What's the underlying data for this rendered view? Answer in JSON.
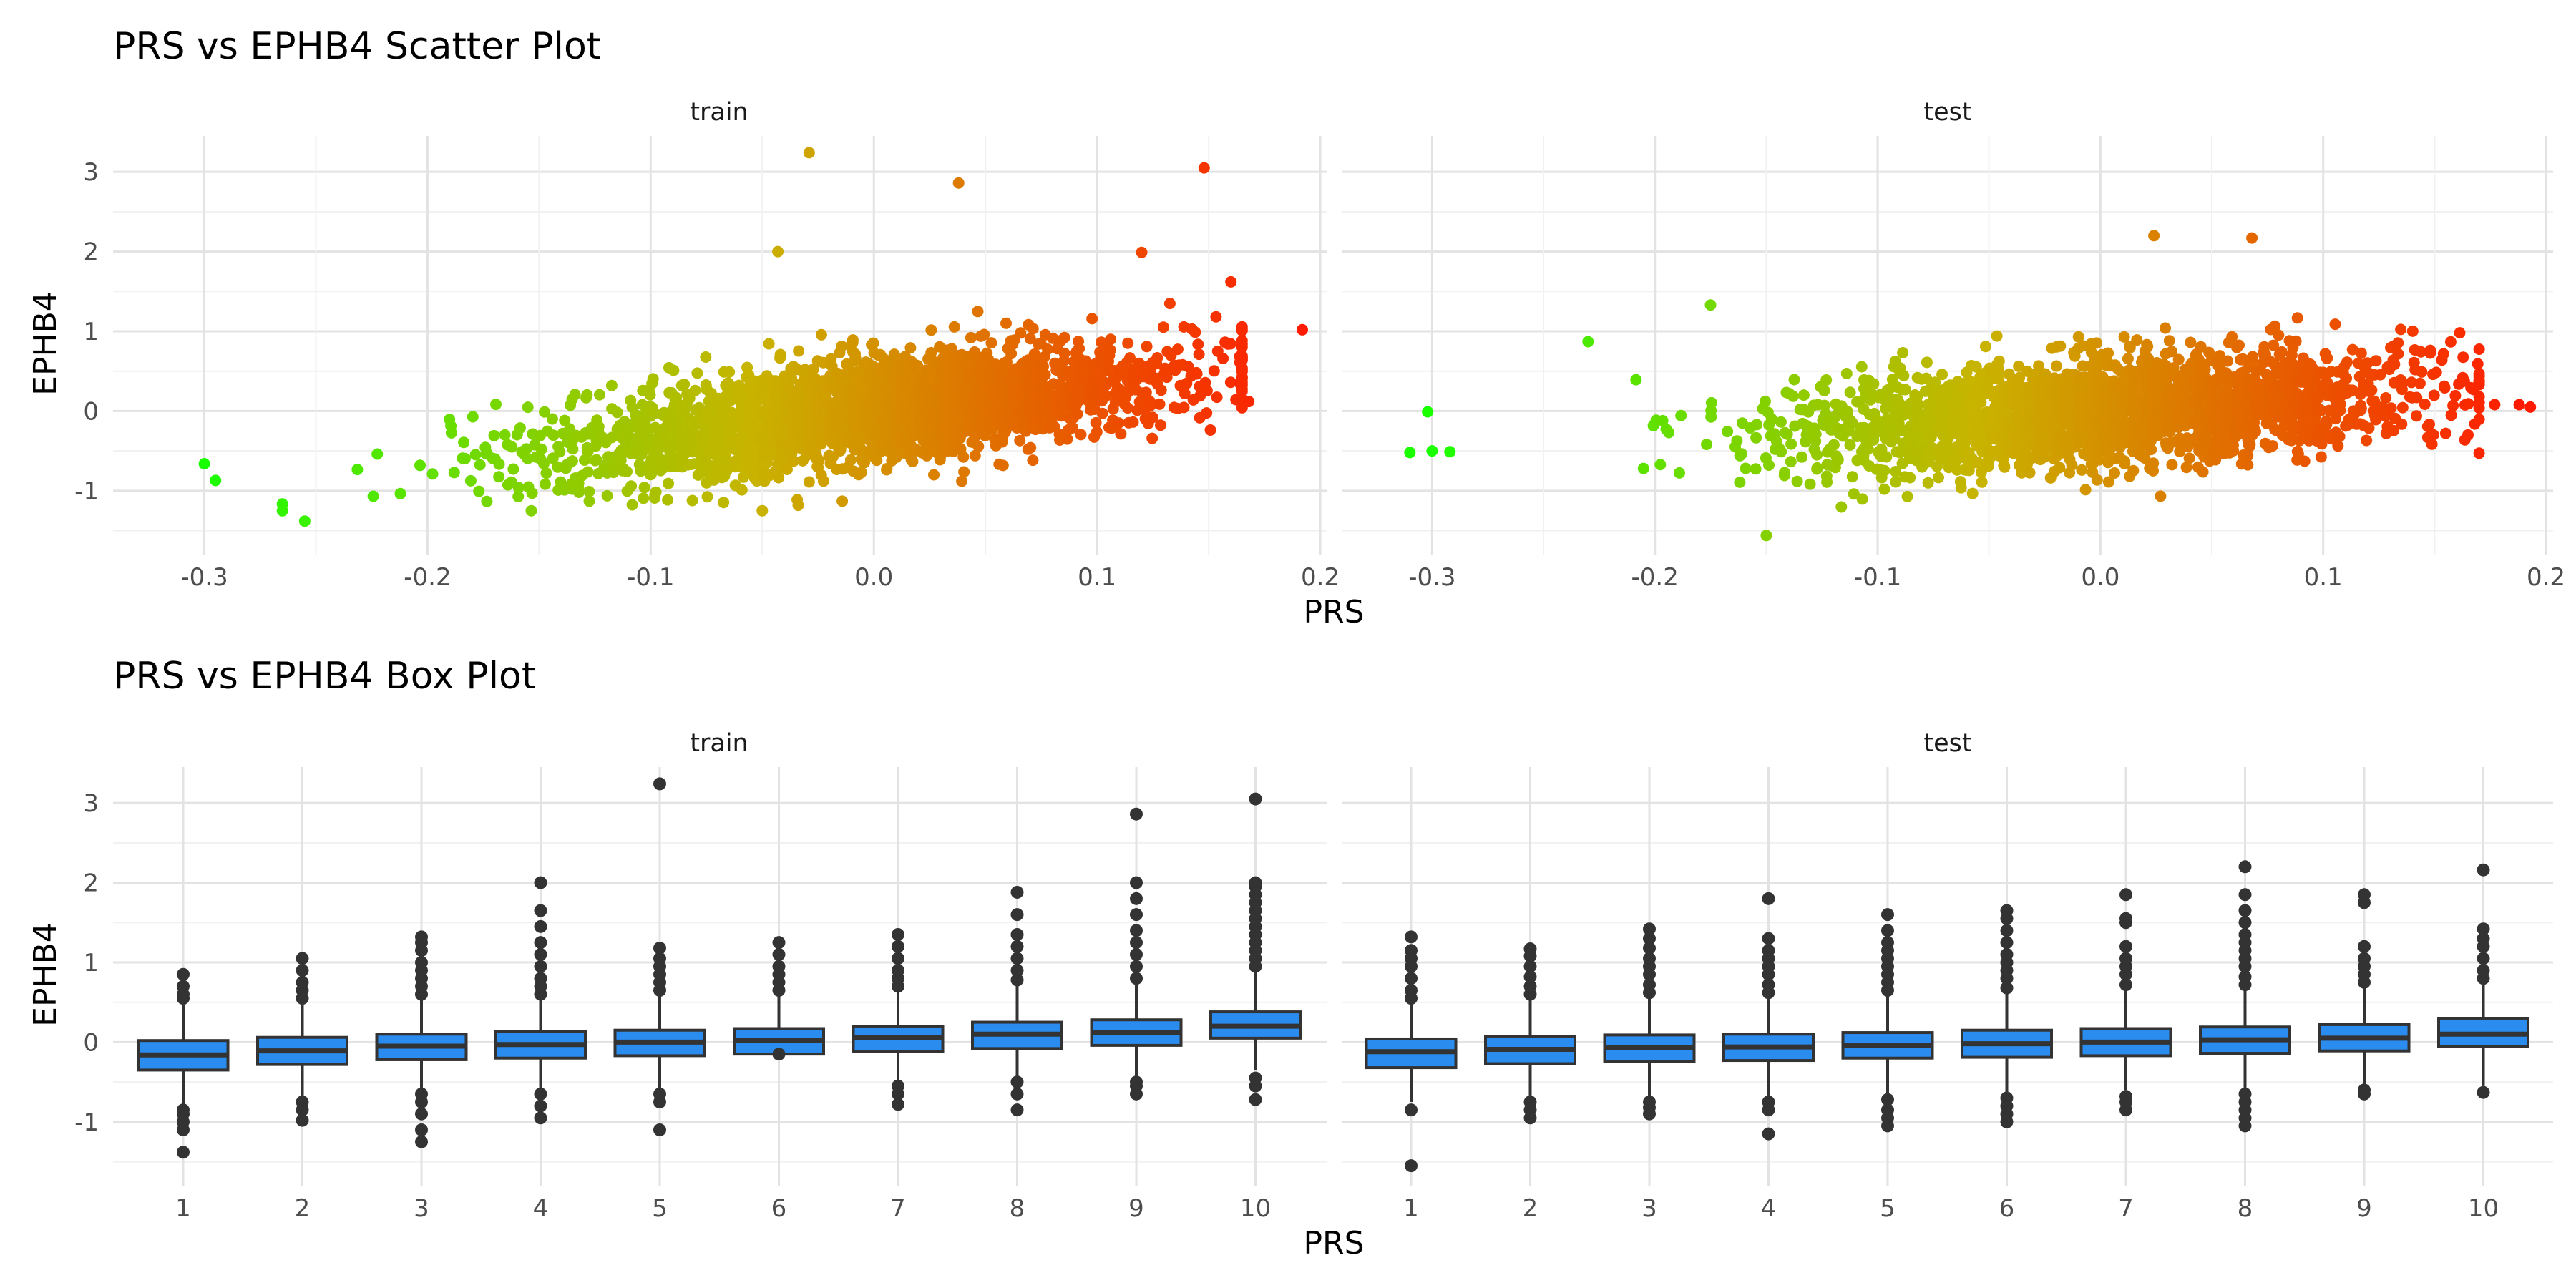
{
  "chart_data": [
    {
      "type": "scatter",
      "title": "PRS vs EPHB4 Scatter Plot",
      "xlabel": "PRS",
      "ylabel": "EPHB4",
      "panels": [
        "train",
        "test"
      ],
      "xlim": [
        -0.33,
        0.2
      ],
      "ylim": [
        -1.8,
        3.45
      ],
      "x_ticks": [
        -0.3,
        -0.2,
        -0.1,
        0.0,
        0.1,
        0.2
      ],
      "x_tick_labels": [
        "-0.3",
        "-0.2",
        "-0.1",
        "0.0",
        "0.1",
        "0.2"
      ],
      "y_ticks": [
        -1,
        0,
        1,
        2,
        3
      ],
      "y_tick_labels": [
        "-1",
        "0",
        "1",
        "2",
        "3"
      ],
      "grid": true,
      "color_scale": {
        "low": "#1aff00",
        "mid": "#c8b400",
        "high": "#ff1a00"
      },
      "trend": {
        "train": {
          "slope": 3.3,
          "intercept": 0.0,
          "sd": 0.33,
          "n": 2600
        },
        "test": {
          "slope": 2.0,
          "intercept": 0.0,
          "sd": 0.33,
          "n": 2200
        }
      },
      "outliers": {
        "train": [
          {
            "x": -0.029,
            "y": 3.24
          },
          {
            "x": 0.038,
            "y": 2.86
          },
          {
            "x": 0.148,
            "y": 3.05
          },
          {
            "x": 0.192,
            "y": 1.02
          },
          {
            "x": -0.043,
            "y": 2.0
          },
          {
            "x": -0.255,
            "y": -1.38
          },
          {
            "x": -0.05,
            "y": -1.25
          },
          {
            "x": -0.295,
            "y": -0.87
          },
          {
            "x": -0.3,
            "y": -0.66
          },
          {
            "x": 0.168,
            "y": 0.12
          },
          {
            "x": 0.16,
            "y": 1.62
          },
          {
            "x": 0.12,
            "y": 1.99
          }
        ],
        "test": [
          {
            "x": -0.302,
            "y": -0.01
          },
          {
            "x": -0.31,
            "y": -0.52
          },
          {
            "x": -0.3,
            "y": -0.5
          },
          {
            "x": -0.292,
            "y": -0.51
          },
          {
            "x": -0.15,
            "y": -1.56
          },
          {
            "x": 0.024,
            "y": 2.2
          },
          {
            "x": 0.068,
            "y": 2.17
          },
          {
            "x": 0.177,
            "y": 0.08
          },
          {
            "x": 0.188,
            "y": 0.08
          },
          {
            "x": 0.193,
            "y": 0.05
          },
          {
            "x": 0.155,
            "y": -0.28
          },
          {
            "x": 0.165,
            "y": -0.3
          },
          {
            "x": -0.175,
            "y": 1.33
          },
          {
            "x": -0.23,
            "y": 0.87
          }
        ]
      }
    },
    {
      "type": "box",
      "title": "PRS vs EPHB4 Box Plot",
      "xlabel": "PRS",
      "ylabel": "EPHB4",
      "panels": [
        "train",
        "test"
      ],
      "categories": [
        "1",
        "2",
        "3",
        "4",
        "5",
        "6",
        "7",
        "8",
        "9",
        "10"
      ],
      "ylim": [
        -1.8,
        3.45
      ],
      "y_ticks": [
        -1,
        0,
        1,
        2,
        3
      ],
      "y_tick_labels": [
        "-1",
        "0",
        "1",
        "2",
        "3"
      ],
      "grid": true,
      "box_fill": "#2b8cf0",
      "boxes": {
        "train": [
          {
            "q1": -0.35,
            "median": -0.16,
            "q3": 0.02,
            "lower": -0.8,
            "upper": 0.5,
            "out_low": [
              -0.85,
              -0.9,
              -1.0,
              -1.1,
              -1.38
            ],
            "out_high": [
              0.55,
              0.6,
              0.7,
              0.85
            ]
          },
          {
            "q1": -0.28,
            "median": -0.11,
            "q3": 0.06,
            "lower": -0.72,
            "upper": 0.52,
            "out_low": [
              -0.75,
              -0.85,
              -0.98
            ],
            "out_high": [
              0.55,
              0.65,
              0.75,
              0.9,
              1.05
            ]
          },
          {
            "q1": -0.22,
            "median": -0.05,
            "q3": 0.1,
            "lower": -0.62,
            "upper": 0.55,
            "out_low": [
              -0.65,
              -0.75,
              -0.9,
              -1.1,
              -1.25
            ],
            "out_high": [
              0.6,
              0.7,
              0.8,
              0.9,
              1.0,
              1.15,
              1.25,
              1.32
            ]
          },
          {
            "q1": -0.2,
            "median": -0.03,
            "q3": 0.13,
            "lower": -0.6,
            "upper": 0.55,
            "out_low": [
              -0.65,
              -0.8,
              -0.95
            ],
            "out_high": [
              0.6,
              0.7,
              0.8,
              0.95,
              1.1,
              1.25,
              1.45,
              1.65,
              2.0
            ]
          },
          {
            "q1": -0.17,
            "median": 0.0,
            "q3": 0.15,
            "lower": -0.6,
            "upper": 0.6,
            "out_low": [
              -0.65,
              -0.75,
              -1.1
            ],
            "out_high": [
              0.65,
              0.75,
              0.85,
              0.95,
              1.05,
              1.18,
              3.24
            ]
          },
          {
            "q1": -0.15,
            "median": 0.02,
            "q3": 0.17,
            "lower": -0.1,
            "upper": 0.6,
            "out_low": [
              -0.15
            ],
            "out_high": [
              0.65,
              0.75,
              0.85,
              0.95,
              1.1,
              1.25
            ]
          },
          {
            "q1": -0.12,
            "median": 0.06,
            "q3": 0.2,
            "lower": -0.5,
            "upper": 0.65,
            "out_low": [
              -0.55,
              -0.65,
              -0.78
            ],
            "out_high": [
              0.7,
              0.8,
              0.9,
              1.05,
              1.2,
              1.35
            ]
          },
          {
            "q1": -0.08,
            "median": 0.1,
            "q3": 0.25,
            "lower": -0.45,
            "upper": 0.72,
            "out_low": [
              -0.5,
              -0.65,
              -0.85
            ],
            "out_high": [
              0.78,
              0.9,
              1.05,
              1.2,
              1.35,
              1.6,
              1.88
            ]
          },
          {
            "q1": -0.04,
            "median": 0.12,
            "q3": 0.28,
            "lower": -0.45,
            "upper": 0.75,
            "out_low": [
              -0.5,
              -0.55,
              -0.65
            ],
            "out_high": [
              0.8,
              0.95,
              1.1,
              1.25,
              1.4,
              1.6,
              1.8,
              2.0,
              2.86
            ]
          },
          {
            "q1": 0.05,
            "median": 0.2,
            "q3": 0.38,
            "lower": -0.35,
            "upper": 0.88,
            "out_low": [
              -0.45,
              -0.55,
              -0.72
            ],
            "out_high": [
              0.95,
              1.05,
              1.15,
              1.25,
              1.35,
              1.45,
              1.55,
              1.65,
              1.75,
              1.85,
              1.95,
              2.0,
              3.05
            ]
          }
        ],
        "test": [
          {
            "q1": -0.32,
            "median": -0.12,
            "q3": 0.04,
            "lower": -0.75,
            "upper": 0.52,
            "out_low": [
              -0.85,
              -1.55
            ],
            "out_high": [
              0.55,
              0.65,
              0.8,
              0.95,
              1.05,
              1.15,
              1.32
            ]
          },
          {
            "q1": -0.27,
            "median": -0.09,
            "q3": 0.07,
            "lower": -0.7,
            "upper": 0.55,
            "out_low": [
              -0.75,
              -0.85,
              -0.95
            ],
            "out_high": [
              0.6,
              0.7,
              0.82,
              0.95,
              1.08,
              1.17
            ]
          },
          {
            "q1": -0.24,
            "median": -0.07,
            "q3": 0.09,
            "lower": -0.7,
            "upper": 0.58,
            "out_low": [
              -0.75,
              -0.82,
              -0.9
            ],
            "out_high": [
              0.62,
              0.72,
              0.85,
              0.95,
              1.05,
              1.18,
              1.3,
              1.42
            ]
          },
          {
            "q1": -0.23,
            "median": -0.06,
            "q3": 0.1,
            "lower": -0.68,
            "upper": 0.58,
            "out_low": [
              -0.75,
              -0.85,
              -1.15
            ],
            "out_high": [
              0.62,
              0.72,
              0.85,
              0.95,
              1.05,
              1.15,
              1.3,
              1.8
            ]
          },
          {
            "q1": -0.2,
            "median": -0.04,
            "q3": 0.12,
            "lower": -0.68,
            "upper": 0.6,
            "out_low": [
              -0.72,
              -0.85,
              -0.95,
              -1.05
            ],
            "out_high": [
              0.65,
              0.75,
              0.85,
              0.95,
              1.05,
              1.15,
              1.25,
              1.4,
              1.6
            ]
          },
          {
            "q1": -0.19,
            "median": -0.02,
            "q3": 0.15,
            "lower": -0.65,
            "upper": 0.62,
            "out_low": [
              -0.7,
              -0.8,
              -0.9,
              -1.0
            ],
            "out_high": [
              0.68,
              0.8,
              0.9,
              1.0,
              1.1,
              1.25,
              1.4,
              1.55,
              1.65
            ]
          },
          {
            "q1": -0.17,
            "median": 0.0,
            "q3": 0.17,
            "lower": -0.6,
            "upper": 0.65,
            "out_low": [
              -0.68,
              -0.75,
              -0.85
            ],
            "out_high": [
              0.72,
              0.85,
              0.95,
              1.05,
              1.2,
              1.5,
              1.55,
              1.85
            ]
          },
          {
            "q1": -0.14,
            "median": 0.03,
            "q3": 0.19,
            "lower": -0.6,
            "upper": 0.68,
            "out_low": [
              -0.65,
              -0.75,
              -0.85,
              -0.95,
              -1.05
            ],
            "out_high": [
              0.72,
              0.82,
              0.95,
              1.05,
              1.15,
              1.25,
              1.35,
              1.5,
              1.65,
              1.85,
              2.2
            ]
          },
          {
            "q1": -0.11,
            "median": 0.05,
            "q3": 0.22,
            "lower": -0.55,
            "upper": 0.7,
            "out_low": [
              -0.6,
              -0.65
            ],
            "out_high": [
              0.75,
              0.85,
              0.95,
              1.05,
              1.2,
              1.75,
              1.85
            ]
          },
          {
            "q1": -0.05,
            "median": 0.1,
            "q3": 0.3,
            "lower": -0.55,
            "upper": 0.75,
            "out_low": [
              -0.63
            ],
            "out_high": [
              0.8,
              0.9,
              1.05,
              1.2,
              1.3,
              1.42,
              2.16
            ]
          }
        ]
      }
    }
  ]
}
